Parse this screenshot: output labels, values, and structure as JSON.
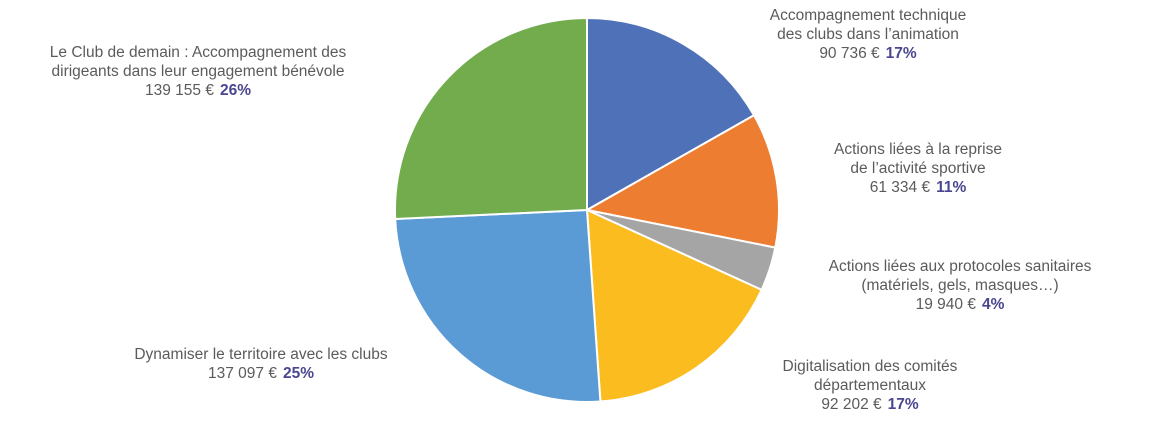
{
  "chart_data": {
    "type": "pie",
    "slices": [
      {
        "name": "Accompagnement technique des clubs dans l’animation",
        "lines": [
          "Accompagnement technique",
          "des clubs dans l’animation"
        ],
        "amount_text": "90 736 €",
        "percent_text": "17%",
        "value": 90736,
        "color": "#4f71b8"
      },
      {
        "name": "Actions liées à la reprise de l’activité sportive",
        "lines": [
          "Actions liées à la reprise",
          "de l’activité sportive"
        ],
        "amount_text": "61 334 €",
        "percent_text": "11%",
        "value": 61334,
        "color": "#ed7d31"
      },
      {
        "name": "Actions liées aux protocoles sanitaires (matériels, gels, masques…)",
        "lines": [
          "Actions liées aux protocoles sanitaires",
          "(matériels, gels, masques…)"
        ],
        "amount_text": "19 940 €",
        "percent_text": "4%",
        "value": 19940,
        "color": "#a5a5a5"
      },
      {
        "name": "Digitalisation des comités départementaux",
        "lines": [
          "Digitalisation des comités",
          "départementaux"
        ],
        "amount_text": "92 202 €",
        "percent_text": "17%",
        "value": 92202,
        "color": "#fbbc1f"
      },
      {
        "name": "Dynamiser le territoire avec les clubs",
        "lines": [
          "Dynamiser le territoire avec les clubs"
        ],
        "amount_text": "137 097 €",
        "percent_text": "25%",
        "value": 137097,
        "color": "#5b9bd5"
      },
      {
        "name": "Le Club de demain : Accompagnement des dirigeants dans leur engagement bénévole",
        "lines": [
          "Le Club de demain : Accompagnement des",
          "dirigeants dans leur engagement bénévole"
        ],
        "amount_text": "139 155 €",
        "percent_text": "26%",
        "value": 139155,
        "color": "#72ac4d"
      }
    ],
    "start_angle_deg": 0,
    "direction": "clockwise",
    "legend": "none"
  }
}
